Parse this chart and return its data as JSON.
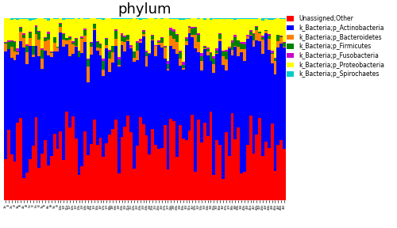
{
  "title": "phylum",
  "n_samples": 92,
  "legend_labels": [
    "Unassigned;Other",
    "k_Bacteria;p_Actinobacteria",
    "k_Bacteria;p_Bacteroidetes",
    "k_Bacteria;p_Firmicutes",
    "k_Bacteria;p_Fusobacteria",
    "k_Bacteria;p_Proteobacteria",
    "k_Bacteria;p_Spirochaetes"
  ],
  "legend_colors": [
    "#FF0000",
    "#0000FF",
    "#FF8000",
    "#008000",
    "#CC00CC",
    "#FFFF00",
    "#00CCCC"
  ],
  "title_fontsize": 13,
  "figsize": [
    5.0,
    2.88
  ],
  "dpi": 100,
  "bar_width": 1.0
}
